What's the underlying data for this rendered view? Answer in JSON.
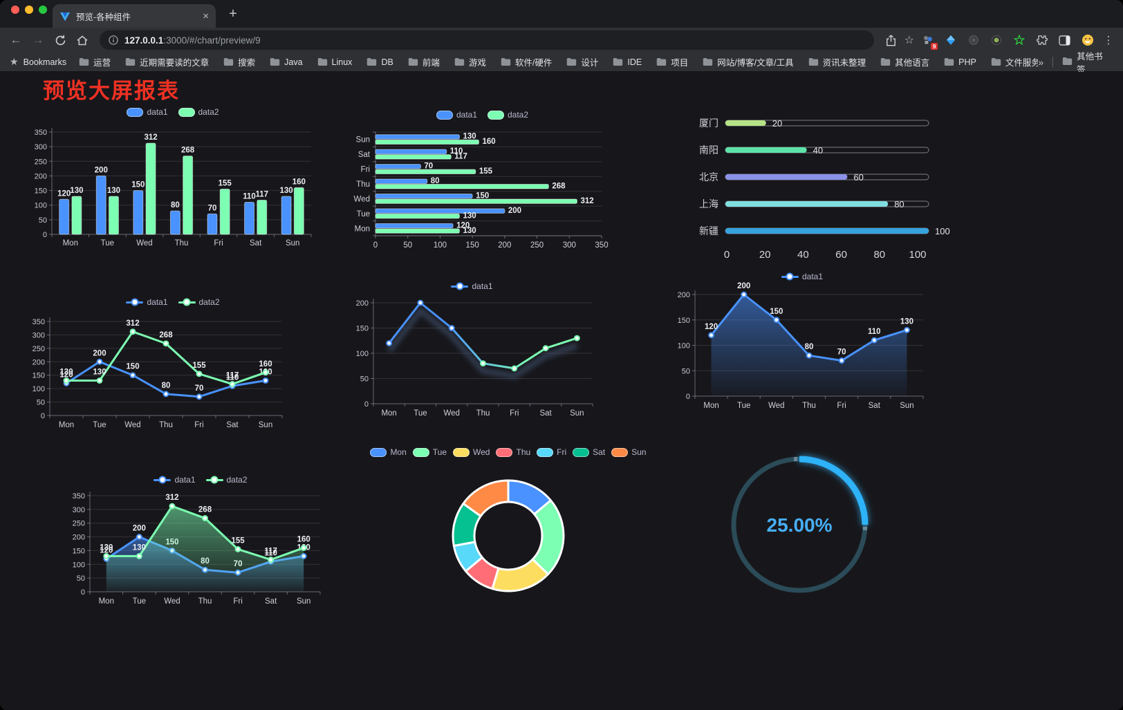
{
  "browser": {
    "tab_title": "预览-各种组件",
    "close_glyph": "×",
    "new_tab_glyph": "+",
    "back_glyph": "←",
    "forward_glyph": "→",
    "url_host": "127.0.0.1",
    "url_rest": ":3000/#/chart/preview/9",
    "star_glyph": "☆",
    "menu_glyph": "⋮",
    "bookmarks_label": "Bookmarks",
    "bookmarks": [
      "运营",
      "近期需要读的文章",
      "搜索",
      "Java",
      "Linux",
      "DB",
      "前端",
      "游戏",
      "软件/硬件",
      "设计",
      "IDE",
      "项目",
      "网站/博客/文章/工具",
      "资讯未整理",
      "其他语言",
      "PHP",
      "文件服务器"
    ],
    "bookmarks_overflow": "»",
    "other_bookmarks": "其他书签",
    "extension_badge": "9"
  },
  "page": {
    "title": "预览大屏报表"
  },
  "colors": {
    "accent_blue": "#4992ff",
    "accent_green": "#7cffb2",
    "title_red": "#f03123",
    "legend_text": "#b9b8ce",
    "gauge_blue": "#2fb2f8",
    "gauge_track": "#2b4b58"
  },
  "chart_data": [
    {
      "id": "bar-vertical",
      "type": "bar",
      "categories": [
        "Mon",
        "Tue",
        "Wed",
        "Thu",
        "Fri",
        "Sat",
        "Sun"
      ],
      "series": [
        {
          "name": "data1",
          "color": "#4992ff",
          "values": [
            120,
            200,
            150,
            80,
            70,
            110,
            130
          ]
        },
        {
          "name": "data2",
          "color": "#7cffb2",
          "values": [
            130,
            130,
            312,
            268,
            155,
            117,
            160
          ]
        }
      ],
      "ylim": [
        0,
        350
      ],
      "yticks": [
        0,
        50,
        100,
        150,
        200,
        250,
        300,
        350
      ],
      "legend_position": "top",
      "grid": true,
      "labels": true
    },
    {
      "id": "bar-horizontal",
      "type": "bar-horizontal",
      "categories_top_to_bottom": [
        "Sun",
        "Sat",
        "Fri",
        "Thu",
        "Wed",
        "Tue",
        "Mon"
      ],
      "series": [
        {
          "name": "data1",
          "color": "#4992ff",
          "values": [
            130,
            110,
            70,
            80,
            150,
            200,
            120
          ]
        },
        {
          "name": "data2",
          "color": "#7cffb2",
          "values": [
            160,
            117,
            155,
            268,
            312,
            130,
            130
          ]
        }
      ],
      "xlim": [
        0,
        350
      ],
      "xticks": [
        0,
        50,
        100,
        150,
        200,
        250,
        300,
        350
      ],
      "legend_position": "top",
      "labels": true
    },
    {
      "id": "progress-bars",
      "type": "progress",
      "items": [
        {
          "label": "厦门",
          "value": 20,
          "color": "#b5e386"
        },
        {
          "label": "南阳",
          "value": 40,
          "color": "#5ee2a9"
        },
        {
          "label": "北京",
          "value": 60,
          "color": "#8b92e8"
        },
        {
          "label": "上海",
          "value": 80,
          "color": "#80dee0"
        },
        {
          "label": "新疆",
          "value": 100,
          "color": "#36a3df"
        }
      ],
      "xlim": [
        0,
        100
      ],
      "xticks": [
        0,
        20,
        40,
        60,
        80,
        100
      ]
    },
    {
      "id": "line-two-series",
      "type": "line",
      "categories": [
        "Mon",
        "Tue",
        "Wed",
        "Thu",
        "Fri",
        "Sat",
        "Sun"
      ],
      "series": [
        {
          "name": "data1",
          "color": "#4992ff",
          "values": [
            120,
            200,
            150,
            80,
            70,
            110,
            130
          ],
          "labels": true
        },
        {
          "name": "data2",
          "color": "#7cffb2",
          "values": [
            130,
            130,
            312,
            268,
            155,
            117,
            160
          ],
          "labels": true
        }
      ],
      "ylim": [
        0,
        350
      ],
      "yticks": [
        0,
        50,
        100,
        150,
        200,
        250,
        300,
        350
      ],
      "legend_position": "top"
    },
    {
      "id": "line-gradient",
      "type": "line",
      "categories": [
        "Mon",
        "Tue",
        "Wed",
        "Thu",
        "Fri",
        "Sat",
        "Sun"
      ],
      "series": [
        {
          "name": "data1",
          "color": "#4992ff",
          "gradient_to": "#7cffb2",
          "shadow": true,
          "values": [
            120,
            200,
            150,
            80,
            70,
            110,
            130
          ],
          "labels": false
        }
      ],
      "ylim": [
        0,
        200
      ],
      "yticks": [
        0,
        50,
        100,
        150,
        200
      ],
      "legend_position": "top"
    },
    {
      "id": "line-area",
      "type": "line",
      "categories": [
        "Mon",
        "Tue",
        "Wed",
        "Thu",
        "Fri",
        "Sat",
        "Sun"
      ],
      "series": [
        {
          "name": "data1",
          "color": "#4992ff",
          "area": true,
          "values": [
            120,
            200,
            150,
            80,
            70,
            110,
            130
          ],
          "labels": true
        }
      ],
      "ylim": [
        0,
        200
      ],
      "yticks": [
        0,
        50,
        100,
        150,
        200
      ],
      "legend_position": "top"
    },
    {
      "id": "line-area-two",
      "type": "line",
      "categories": [
        "Mon",
        "Tue",
        "Wed",
        "Thu",
        "Fri",
        "Sat",
        "Sun"
      ],
      "series": [
        {
          "name": "data1",
          "color": "#4992ff",
          "area": true,
          "values": [
            120,
            200,
            150,
            80,
            70,
            110,
            130
          ],
          "labels": true
        },
        {
          "name": "data2",
          "color": "#7cffb2",
          "area": true,
          "values": [
            130,
            130,
            312,
            268,
            155,
            117,
            160
          ],
          "labels": true
        }
      ],
      "ylim": [
        0,
        350
      ],
      "yticks": [
        0,
        50,
        100,
        150,
        200,
        250,
        300,
        350
      ],
      "legend_position": "top"
    },
    {
      "id": "donut",
      "type": "pie",
      "slices": [
        {
          "label": "Mon",
          "value": 120,
          "color": "#4992ff"
        },
        {
          "label": "Tue",
          "value": 200,
          "color": "#7cffb2"
        },
        {
          "label": "Wed",
          "value": 150,
          "color": "#fddd60"
        },
        {
          "label": "Thu",
          "value": 80,
          "color": "#ff6e76"
        },
        {
          "label": "Fri",
          "value": 70,
          "color": "#58d9f9"
        },
        {
          "label": "Sat",
          "value": 110,
          "color": "#05c091"
        },
        {
          "label": "Sun",
          "value": 130,
          "color": "#ff8a45"
        }
      ],
      "legend_position": "top"
    },
    {
      "id": "gauge-ring",
      "type": "gauge",
      "value_percent": 25,
      "display": "25.00%",
      "color": "#2fb2f8",
      "track_color": "#2b4b58"
    }
  ]
}
